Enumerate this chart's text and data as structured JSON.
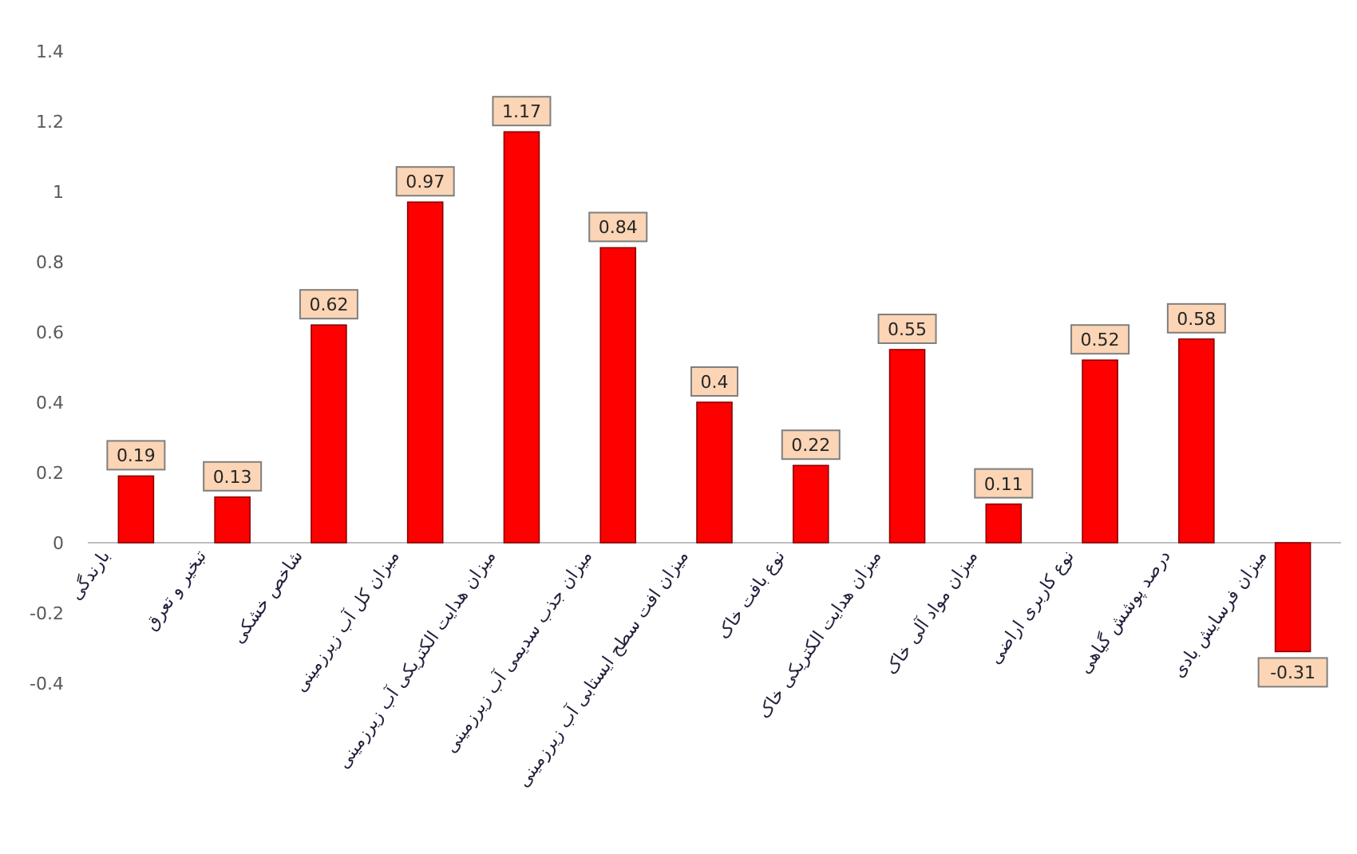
{
  "chart_data": {
    "type": "bar",
    "categories": [
      "بارندگی",
      "تبخیر و تعرق",
      "شاخص خشکی",
      "میزان کل آب زیرزمینی",
      "میزان هدایت الکتریکی آب زیرزمینی",
      "میزان جذب سدیمی آب زیرزمینی",
      "میزان افت سطح ایستابی آب زیرزمینی",
      "نوع بافت خاک",
      "میزان هدایت الکتریکی خاک",
      "میزان مواد آلی خاک",
      "نوع کاربری اراضی",
      "درصد پوشش گیاهی",
      "میزان فرسایش بادی"
    ],
    "values": [
      0.19,
      0.13,
      0.62,
      0.97,
      1.17,
      0.84,
      0.4,
      0.22,
      0.55,
      0.11,
      0.52,
      0.58,
      -0.31
    ],
    "color": "#ff0000",
    "data_labels": true,
    "ylim": [
      -0.4,
      1.4
    ],
    "yticks": [
      -0.4,
      -0.2,
      0,
      0.2,
      0.4,
      0.6,
      0.8,
      1,
      1.2,
      1.4
    ]
  }
}
